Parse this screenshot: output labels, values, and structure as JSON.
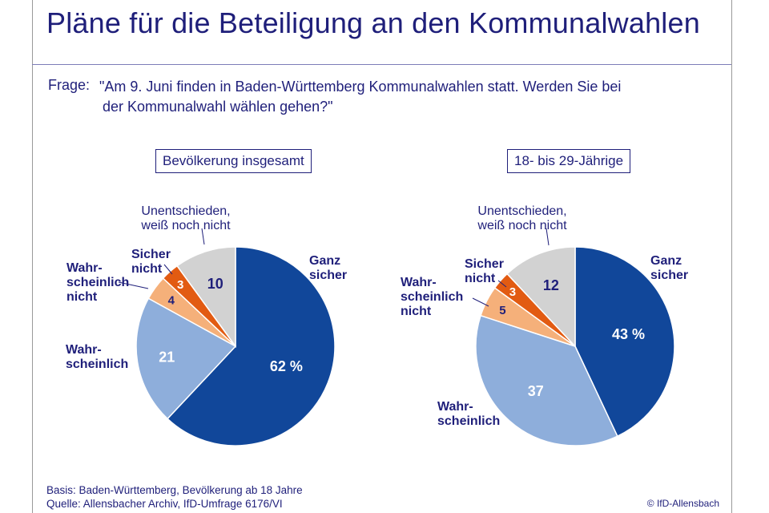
{
  "title": "Pläne für die Beteiligung an den Kommunalwahlen",
  "question": {
    "label": "Frage:",
    "line1": "\"Am 9. Juni finden in Baden-Württemberg Kommunalwahlen statt. Werden Sie bei",
    "line2": "der Kommunalwahl wählen gehen?\""
  },
  "chart_data": [
    {
      "type": "pie",
      "title": "Bevölkerung insgesamt",
      "slices": [
        {
          "key": "ganz-sicher",
          "label": "Ganz sicher",
          "label_lines": [
            "Ganz",
            "sicher"
          ],
          "value": 62,
          "value_label": "62 %",
          "color": "#11479a",
          "text_color": "#ffffff"
        },
        {
          "key": "wahrscheinlich",
          "label": "Wahrscheinlich",
          "label_lines": [
            "Wahr-",
            "scheinlich"
          ],
          "value": 21,
          "value_label": "21",
          "color": "#8eaedb",
          "text_color": "#ffffff"
        },
        {
          "key": "wahrscheinlich-nicht",
          "label": "Wahrscheinlich nicht",
          "label_lines": [
            "Wahr-",
            "scheinlich",
            "nicht"
          ],
          "value": 4,
          "value_label": "4",
          "color": "#f5b07a",
          "text_color": "#1f1f7a"
        },
        {
          "key": "sicher-nicht",
          "label": "Sicher nicht",
          "label_lines": [
            "Sicher",
            "nicht"
          ],
          "value": 3,
          "value_label": "3",
          "color": "#e25b12",
          "text_color": "#ffffff"
        },
        {
          "key": "unentschieden",
          "label": "Unentschieden, weiß noch nicht",
          "label_lines": [
            "Unentschieden,",
            "weiß noch nicht"
          ],
          "value": 10,
          "value_label": "10",
          "color": "#d2d2d2",
          "text_color": "#1f1f7a"
        }
      ]
    },
    {
      "type": "pie",
      "title": "18- bis 29-Jährige",
      "slices": [
        {
          "key": "ganz-sicher",
          "label": "Ganz sicher",
          "label_lines": [
            "Ganz",
            "sicher"
          ],
          "value": 43,
          "value_label": "43 %",
          "color": "#11479a",
          "text_color": "#ffffff"
        },
        {
          "key": "wahrscheinlich",
          "label": "Wahrscheinlich",
          "label_lines": [
            "Wahr-",
            "scheinlich"
          ],
          "value": 37,
          "value_label": "37",
          "color": "#8eaedb",
          "text_color": "#ffffff"
        },
        {
          "key": "wahrscheinlich-nicht",
          "label": "Wahrscheinlich nicht",
          "label_lines": [
            "Wahr-",
            "scheinlich",
            "nicht"
          ],
          "value": 5,
          "value_label": "5",
          "color": "#f5b07a",
          "text_color": "#1f1f7a"
        },
        {
          "key": "sicher-nicht",
          "label": "Sicher nicht",
          "label_lines": [
            "Sicher",
            "nicht"
          ],
          "value": 3,
          "value_label": "3",
          "color": "#e25b12",
          "text_color": "#ffffff"
        },
        {
          "key": "unentschieden",
          "label": "Unentschieden, weiß noch nicht",
          "label_lines": [
            "Unentschieden,",
            "weiß noch nicht"
          ],
          "value": 12,
          "value_label": "12",
          "color": "#d2d2d2",
          "text_color": "#1f1f7a"
        }
      ]
    }
  ],
  "footer": {
    "basis": "Basis: Baden-Württemberg, Bevölkerung ab 18 Jahre",
    "quelle": "Quelle: Allensbacher Archiv, IfD-Umfrage 6176/VI",
    "copyright": "© IfD-Allensbach"
  }
}
